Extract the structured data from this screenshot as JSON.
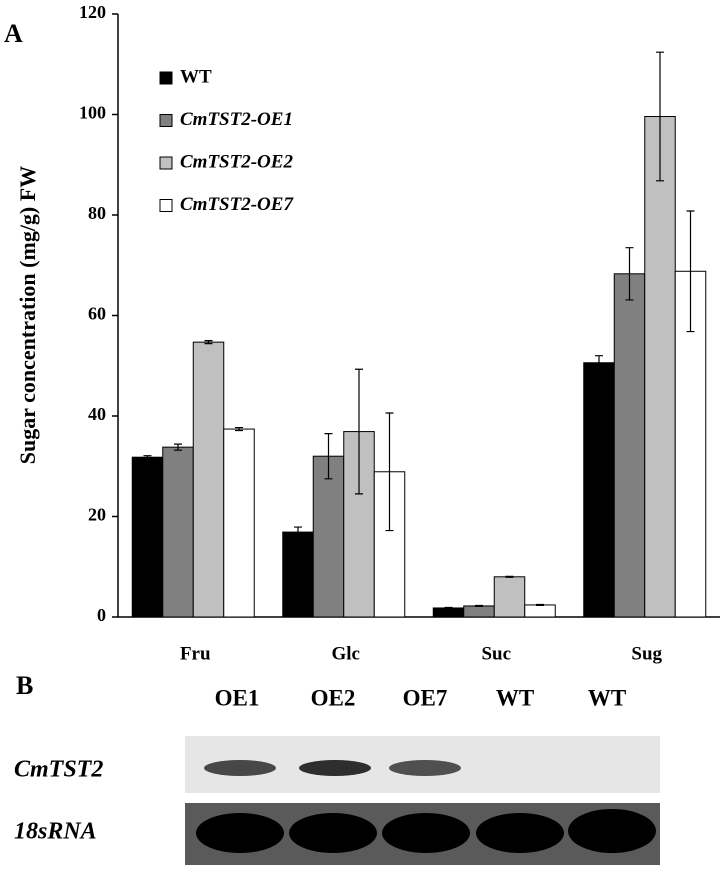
{
  "chart_data": {
    "type": "bar",
    "annotations": [
      "A"
    ],
    "y_label": "Sugar concentration (mg/g) FW",
    "categories": [
      "Fru",
      "Glc",
      "Suc",
      "Sug"
    ],
    "series": [
      {
        "name": "WT",
        "color": "#000000",
        "values": [
          31.8,
          16.9,
          1.8,
          50.6
        ],
        "errors": [
          0.3,
          1.0,
          0.1,
          1.4
        ]
      },
      {
        "name": "CmTST2-OE1",
        "color": "#808080",
        "values": [
          33.8,
          32.0,
          2.2,
          68.3
        ],
        "errors": [
          0.6,
          4.5,
          0.1,
          5.2
        ]
      },
      {
        "name": "CmTST2-OE2",
        "color": "#c0c0c0",
        "values": [
          54.7,
          36.9,
          8.0,
          99.6
        ],
        "errors": [
          0.3,
          12.4,
          0.1,
          12.8
        ]
      },
      {
        "name": "CmTST2-OE7",
        "color": "#ffffff",
        "values": [
          37.4,
          28.9,
          2.4,
          68.8
        ],
        "errors": [
          0.3,
          11.7,
          0.1,
          12.0
        ]
      }
    ],
    "ylim": [
      0,
      120
    ],
    "yticks": [
      0,
      20,
      40,
      60,
      80,
      100,
      120
    ],
    "legend": "upper left"
  },
  "blot": {
    "panel_label": "B",
    "lanes": [
      "OE1",
      "OE2",
      "OE7",
      "WT",
      "WT"
    ],
    "rows": [
      "CmTST2",
      "18sRNA"
    ]
  }
}
